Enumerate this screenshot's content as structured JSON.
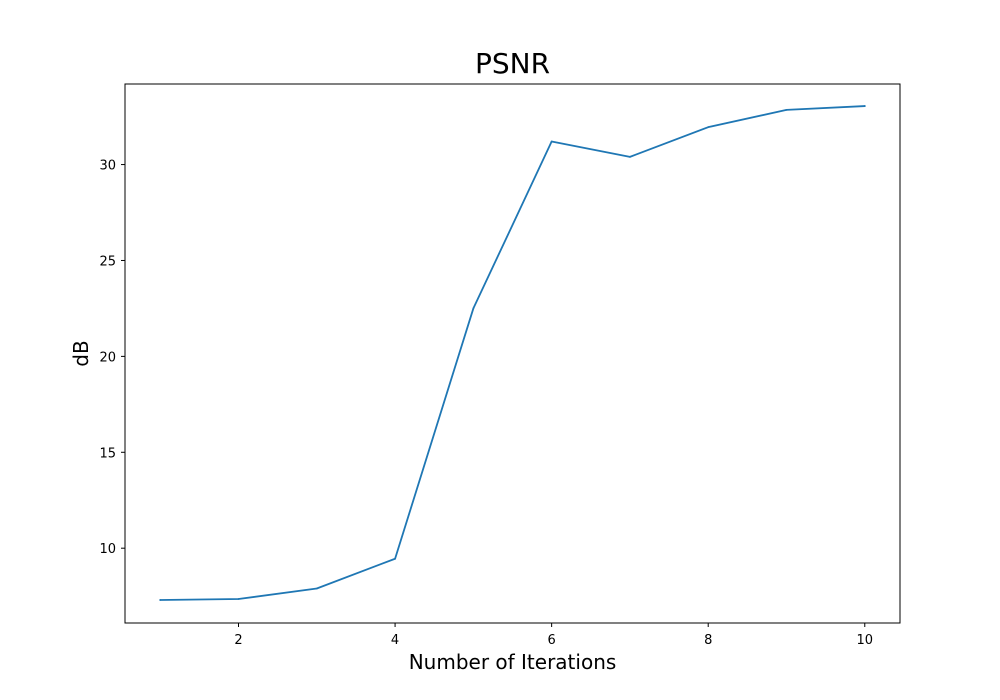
{
  "chart_data": {
    "type": "line",
    "title": "PSNR",
    "xlabel": "Number of Iterations",
    "ylabel": "dB",
    "x": [
      1,
      2,
      3,
      4,
      5,
      6,
      7,
      8,
      9,
      10
    ],
    "series": [
      {
        "values": [
          7.3,
          7.35,
          7.9,
          9.45,
          22.5,
          31.2,
          30.4,
          31.95,
          32.85,
          33.05
        ],
        "color": "#1f77b4"
      }
    ],
    "xlim": [
      0.55,
      10.45
    ],
    "ylim": [
      6.1,
      34.2
    ],
    "xticks": [
      2,
      4,
      6,
      8,
      10
    ],
    "yticks": [
      10,
      15,
      20,
      25,
      30
    ],
    "grid": false,
    "legend": "none"
  }
}
